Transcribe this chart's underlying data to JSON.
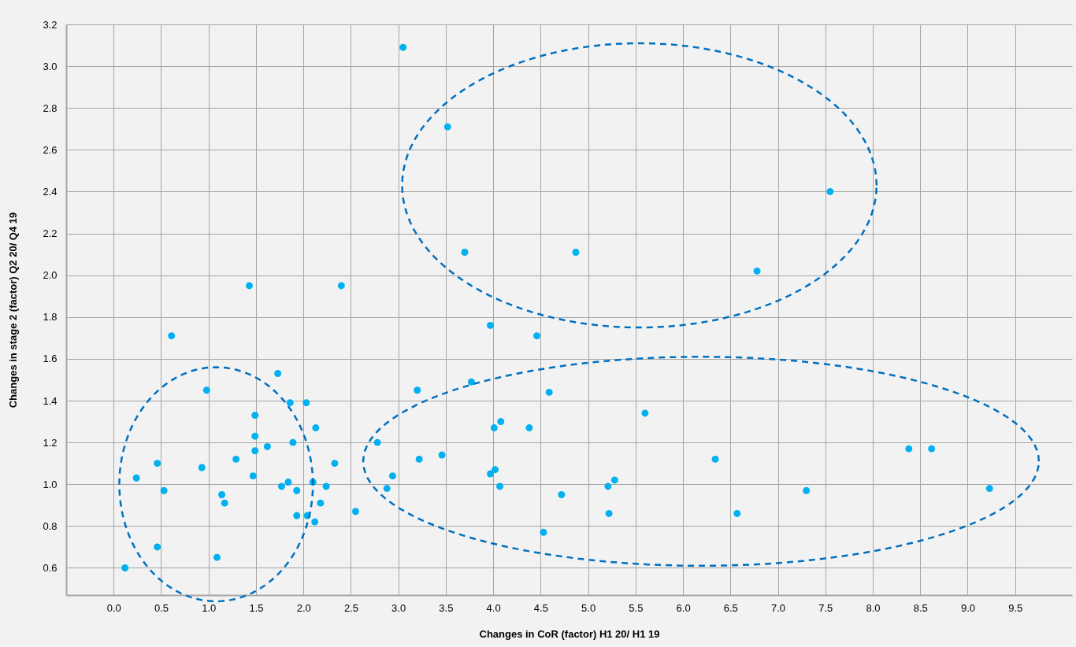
{
  "chart_data": {
    "type": "scatter",
    "xlabel": "Changes in CoR (factor) H1 20/ H1 19",
    "ylabel": "Changes in stage 2 (factor) Q2 20/ Q4 19",
    "marker": "circle",
    "grid": true,
    "xlim": [
      -0.5,
      10.1
    ],
    "ylim": [
      0.47,
      3.2
    ],
    "xticks": [
      {
        "value": 0,
        "label": "0.0"
      },
      0.5,
      {
        "value": 1,
        "label": "1.0"
      },
      1.5,
      {
        "value": 2,
        "label": "2.0"
      },
      2.5,
      {
        "value": 3,
        "label": "3.0"
      },
      3.5,
      {
        "value": 4,
        "label": "4.0"
      },
      4.5,
      {
        "value": 5,
        "label": "5.0"
      },
      5.5,
      {
        "value": 6,
        "label": "6.0"
      },
      6.5,
      {
        "value": 7,
        "label": "7.0"
      },
      7.5,
      {
        "value": 8,
        "label": "8.0"
      },
      8.5,
      {
        "value": 9,
        "label": "9.0"
      },
      9.5
    ],
    "yticks": [
      0.6,
      0.8,
      {
        "value": 1,
        "label": "1.0"
      },
      1.2,
      1.4,
      1.6,
      1.8,
      {
        "value": 2,
        "label": "2.0"
      },
      2.2,
      2.4,
      2.6,
      2.8,
      {
        "value": 3,
        "label": "3.0"
      },
      3.2
    ],
    "series": [
      {
        "color": "#00b0f0",
        "x": [
          1.43,
          2.4,
          0.61,
          1.73,
          0.98,
          1.86,
          2.03,
          1.49,
          2.13,
          1.49,
          1.89,
          1.49,
          1.62,
          1.29,
          2.33,
          0.46,
          0.93,
          0.24,
          1.47,
          1.84,
          1.77,
          2.1,
          2.24,
          1.93,
          0.53,
          1.14,
          1.17,
          2.18,
          2.55,
          1.93,
          2.04,
          2.12,
          0.46,
          1.09,
          0.12,
          3.97,
          4.46,
          3.2,
          3.77,
          4.59,
          5.6,
          4.08,
          4.01,
          4.38,
          2.78,
          3.22,
          3.46,
          2.94,
          2.88,
          4.02,
          3.97,
          4.07,
          5.28,
          5.21,
          4.72,
          5.22,
          4.53,
          6.34,
          6.57,
          7.3,
          8.38,
          8.62,
          9.23,
          3.05,
          3.52,
          3.7,
          4.87,
          7.55,
          6.78
        ],
        "values": [
          1.95,
          1.95,
          1.71,
          1.53,
          1.45,
          1.39,
          1.39,
          1.33,
          1.27,
          1.23,
          1.2,
          1.16,
          1.18,
          1.12,
          1.1,
          1.1,
          1.08,
          1.03,
          1.04,
          1.01,
          0.99,
          1.01,
          0.99,
          0.97,
          0.97,
          0.95,
          0.91,
          0.91,
          0.87,
          0.85,
          0.85,
          0.82,
          0.7,
          0.65,
          0.6,
          1.76,
          1.71,
          1.45,
          1.49,
          1.44,
          1.34,
          1.3,
          1.27,
          1.27,
          1.2,
          1.12,
          1.14,
          1.04,
          0.98,
          1.07,
          1.05,
          0.99,
          1.02,
          0.99,
          0.95,
          0.86,
          0.77,
          1.12,
          0.86,
          0.97,
          1.17,
          1.17,
          0.98,
          3.09,
          2.71,
          2.11,
          2.11,
          2.4,
          2.02
        ]
      }
    ]
  }
}
